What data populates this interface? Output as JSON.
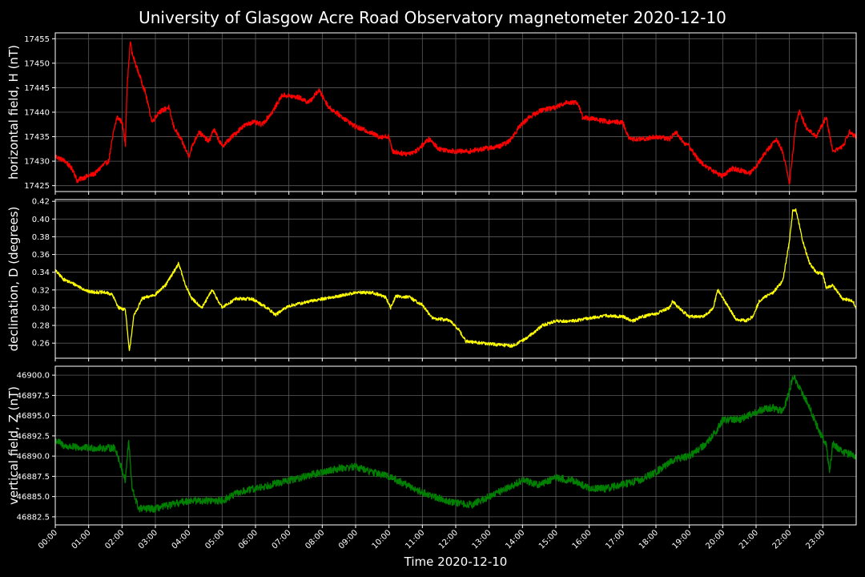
{
  "chart_data": {
    "title": "University of Glasgow Acre Road Observatory magnetometer 2020-12-10",
    "xlabel": "Time 2020-12-10",
    "x_ticks": [
      "00:00",
      "01:00",
      "02:00",
      "03:00",
      "04:00",
      "05:00",
      "06:00",
      "07:00",
      "08:00",
      "09:00",
      "10:00",
      "11:00",
      "12:00",
      "13:00",
      "14:00",
      "15:00",
      "16:00",
      "17:00",
      "18:00",
      "19:00",
      "20:00",
      "21:00",
      "22:00",
      "23:00"
    ],
    "xlim_hours": [
      0,
      24
    ],
    "grid": true,
    "panels": [
      {
        "type": "line",
        "ylabel": "horizontal field, H (nT)",
        "color": "#ff0000",
        "ylim": [
          17423.8,
          17456.2
        ],
        "yticks": [
          17425,
          17430,
          17435,
          17440,
          17445,
          17450,
          17455
        ],
        "ytick_labels": [
          "17425",
          "17430",
          "17435",
          "17440",
          "17445",
          "17450",
          "17455"
        ],
        "noise": 0.5,
        "series": [
          [
            0.0,
            17431
          ],
          [
            0.3,
            17430
          ],
          [
            0.55,
            17428
          ],
          [
            0.65,
            17426
          ],
          [
            0.8,
            17426.5
          ],
          [
            1.0,
            17427
          ],
          [
            1.2,
            17427.5
          ],
          [
            1.4,
            17429
          ],
          [
            1.6,
            17430
          ],
          [
            1.75,
            17436
          ],
          [
            1.85,
            17439
          ],
          [
            2.0,
            17438
          ],
          [
            2.1,
            17433.5
          ],
          [
            2.15,
            17445
          ],
          [
            2.25,
            17454.5
          ],
          [
            2.3,
            17452
          ],
          [
            2.5,
            17448
          ],
          [
            2.7,
            17444
          ],
          [
            2.9,
            17438
          ],
          [
            3.1,
            17440
          ],
          [
            3.4,
            17441
          ],
          [
            3.55,
            17437
          ],
          [
            3.8,
            17434
          ],
          [
            4.0,
            17431
          ],
          [
            4.1,
            17433
          ],
          [
            4.3,
            17436
          ],
          [
            4.6,
            17434
          ],
          [
            4.75,
            17436.5
          ],
          [
            5.0,
            17433
          ],
          [
            5.3,
            17435
          ],
          [
            5.6,
            17437
          ],
          [
            5.9,
            17438
          ],
          [
            6.2,
            17437.5
          ],
          [
            6.5,
            17440
          ],
          [
            6.8,
            17443.5
          ],
          [
            7.3,
            17443
          ],
          [
            7.6,
            17442
          ],
          [
            7.9,
            17444.5
          ],
          [
            8.2,
            17441
          ],
          [
            8.6,
            17439
          ],
          [
            9.0,
            17437
          ],
          [
            9.4,
            17436
          ],
          [
            9.7,
            17435
          ],
          [
            10.0,
            17435
          ],
          [
            10.1,
            17432
          ],
          [
            10.5,
            17431.5
          ],
          [
            10.8,
            17432
          ],
          [
            11.2,
            17434.5
          ],
          [
            11.5,
            17432.5
          ],
          [
            12.0,
            17432
          ],
          [
            12.4,
            17432
          ],
          [
            12.8,
            17432.5
          ],
          [
            13.3,
            17433
          ],
          [
            13.6,
            17434
          ],
          [
            13.9,
            17437
          ],
          [
            14.2,
            17439
          ],
          [
            14.6,
            17440.5
          ],
          [
            15.0,
            17441
          ],
          [
            15.3,
            17442
          ],
          [
            15.65,
            17442
          ],
          [
            15.8,
            17439
          ],
          [
            16.2,
            17438.5
          ],
          [
            16.6,
            17438
          ],
          [
            17.0,
            17438
          ],
          [
            17.2,
            17434.5
          ],
          [
            17.6,
            17434.5
          ],
          [
            18.0,
            17435
          ],
          [
            18.4,
            17434.5
          ],
          [
            18.6,
            17436
          ],
          [
            18.8,
            17434
          ],
          [
            19.0,
            17433
          ],
          [
            19.3,
            17430
          ],
          [
            19.7,
            17428
          ],
          [
            20.0,
            17427
          ],
          [
            20.3,
            17428.5
          ],
          [
            20.6,
            17428
          ],
          [
            20.8,
            17427.5
          ],
          [
            21.0,
            17429
          ],
          [
            21.2,
            17431
          ],
          [
            21.6,
            17434.5
          ],
          [
            21.8,
            17432
          ],
          [
            22.0,
            17425.5
          ],
          [
            22.2,
            17438
          ],
          [
            22.3,
            17440
          ],
          [
            22.5,
            17437
          ],
          [
            22.8,
            17435
          ],
          [
            23.1,
            17439
          ],
          [
            23.3,
            17432
          ],
          [
            23.6,
            17433
          ],
          [
            23.8,
            17436
          ],
          [
            24.0,
            17435
          ]
        ]
      },
      {
        "type": "line",
        "ylabel": "declination, D (degrees)",
        "color": "#ffff00",
        "ylim": [
          0.243,
          0.422
        ],
        "yticks": [
          0.26,
          0.28,
          0.3,
          0.32,
          0.34,
          0.36,
          0.38,
          0.4,
          0.42
        ],
        "ytick_labels": [
          "0.26",
          "0.28",
          "0.30",
          "0.32",
          "0.34",
          "0.36",
          "0.38",
          "0.40",
          "0.42"
        ],
        "noise": 0.0018,
        "series": [
          [
            0.0,
            0.342
          ],
          [
            0.25,
            0.332
          ],
          [
            0.6,
            0.326
          ],
          [
            1.0,
            0.318
          ],
          [
            1.5,
            0.317
          ],
          [
            1.7,
            0.315
          ],
          [
            1.9,
            0.3
          ],
          [
            2.1,
            0.298
          ],
          [
            2.22,
            0.25
          ],
          [
            2.35,
            0.29
          ],
          [
            2.6,
            0.31
          ],
          [
            3.0,
            0.315
          ],
          [
            3.3,
            0.325
          ],
          [
            3.7,
            0.35
          ],
          [
            3.9,
            0.325
          ],
          [
            4.1,
            0.31
          ],
          [
            4.4,
            0.3
          ],
          [
            4.7,
            0.32
          ],
          [
            5.0,
            0.3
          ],
          [
            5.4,
            0.31
          ],
          [
            5.9,
            0.31
          ],
          [
            6.3,
            0.301
          ],
          [
            6.6,
            0.292
          ],
          [
            7.0,
            0.302
          ],
          [
            7.5,
            0.306
          ],
          [
            8.0,
            0.31
          ],
          [
            8.5,
            0.313
          ],
          [
            9.0,
            0.317
          ],
          [
            9.5,
            0.317
          ],
          [
            9.9,
            0.312
          ],
          [
            10.05,
            0.3
          ],
          [
            10.2,
            0.313
          ],
          [
            10.6,
            0.312
          ],
          [
            11.0,
            0.303
          ],
          [
            11.3,
            0.288
          ],
          [
            11.8,
            0.286
          ],
          [
            12.1,
            0.275
          ],
          [
            12.3,
            0.262
          ],
          [
            12.8,
            0.26
          ],
          [
            13.3,
            0.258
          ],
          [
            13.7,
            0.257
          ],
          [
            14.1,
            0.265
          ],
          [
            14.6,
            0.28
          ],
          [
            15.0,
            0.285
          ],
          [
            15.5,
            0.285
          ],
          [
            16.0,
            0.288
          ],
          [
            16.5,
            0.291
          ],
          [
            17.0,
            0.29
          ],
          [
            17.3,
            0.285
          ],
          [
            17.6,
            0.29
          ],
          [
            18.0,
            0.293
          ],
          [
            18.4,
            0.3
          ],
          [
            18.5,
            0.307
          ],
          [
            18.8,
            0.296
          ],
          [
            19.0,
            0.29
          ],
          [
            19.4,
            0.29
          ],
          [
            19.7,
            0.298
          ],
          [
            19.85,
            0.32
          ],
          [
            20.1,
            0.305
          ],
          [
            20.4,
            0.287
          ],
          [
            20.7,
            0.285
          ],
          [
            20.9,
            0.29
          ],
          [
            21.1,
            0.308
          ],
          [
            21.5,
            0.317
          ],
          [
            21.8,
            0.33
          ],
          [
            22.0,
            0.375
          ],
          [
            22.1,
            0.41
          ],
          [
            22.2,
            0.41
          ],
          [
            22.4,
            0.375
          ],
          [
            22.6,
            0.35
          ],
          [
            22.8,
            0.34
          ],
          [
            23.0,
            0.338
          ],
          [
            23.1,
            0.323
          ],
          [
            23.3,
            0.325
          ],
          [
            23.6,
            0.31
          ],
          [
            23.9,
            0.308
          ],
          [
            24.0,
            0.298
          ]
        ]
      },
      {
        "type": "line",
        "ylabel": "vertical field, Z (nT)",
        "color": "#008000",
        "ylim": [
          46881.5,
          46901.1
        ],
        "yticks": [
          46882.5,
          46885.0,
          46887.5,
          46890.0,
          46892.5,
          46895.0,
          46897.5,
          46900.0
        ],
        "ytick_labels": [
          "46882.5",
          "46885.0",
          "46887.5",
          "46890.0",
          "46892.5",
          "46895.0",
          "46897.5",
          "46900.0"
        ],
        "noise": 0.45,
        "series": [
          [
            0.0,
            46892
          ],
          [
            0.3,
            46891.2
          ],
          [
            0.8,
            46891
          ],
          [
            1.2,
            46891
          ],
          [
            1.8,
            46891
          ],
          [
            1.95,
            46889
          ],
          [
            2.1,
            46887
          ],
          [
            2.2,
            46892
          ],
          [
            2.3,
            46886
          ],
          [
            2.5,
            46883.5
          ],
          [
            3.0,
            46883.5
          ],
          [
            3.5,
            46884
          ],
          [
            4.0,
            46884.5
          ],
          [
            4.5,
            46884.5
          ],
          [
            5.0,
            46884.5
          ],
          [
            5.5,
            46885.5
          ],
          [
            6.0,
            46886
          ],
          [
            6.5,
            46886.5
          ],
          [
            7.0,
            46887
          ],
          [
            7.5,
            46887.5
          ],
          [
            8.0,
            46888
          ],
          [
            8.5,
            46888.5
          ],
          [
            9.0,
            46888.7
          ],
          [
            9.5,
            46888
          ],
          [
            10.0,
            46887.5
          ],
          [
            10.5,
            46886.5
          ],
          [
            11.0,
            46885.5
          ],
          [
            11.5,
            46884.8
          ],
          [
            12.0,
            46884.2
          ],
          [
            12.5,
            46884
          ],
          [
            13.0,
            46885
          ],
          [
            13.5,
            46886
          ],
          [
            14.0,
            46887
          ],
          [
            14.5,
            46886.5
          ],
          [
            15.0,
            46887.3
          ],
          [
            15.5,
            46887
          ],
          [
            16.0,
            46886
          ],
          [
            16.5,
            46886
          ],
          [
            17.0,
            46886.5
          ],
          [
            17.5,
            46887
          ],
          [
            18.0,
            46888
          ],
          [
            18.5,
            46889.5
          ],
          [
            19.0,
            46890
          ],
          [
            19.5,
            46891.5
          ],
          [
            19.8,
            46893
          ],
          [
            20.0,
            46894.5
          ],
          [
            20.5,
            46894.5
          ],
          [
            21.0,
            46895.5
          ],
          [
            21.5,
            46896
          ],
          [
            21.8,
            46895.5
          ],
          [
            22.0,
            46898
          ],
          [
            22.1,
            46900
          ],
          [
            22.3,
            46898.5
          ],
          [
            22.6,
            46896
          ],
          [
            22.9,
            46893
          ],
          [
            23.1,
            46891.5
          ],
          [
            23.2,
            46888
          ],
          [
            23.3,
            46891.5
          ],
          [
            23.6,
            46890.5
          ],
          [
            24.0,
            46890
          ]
        ]
      }
    ]
  }
}
